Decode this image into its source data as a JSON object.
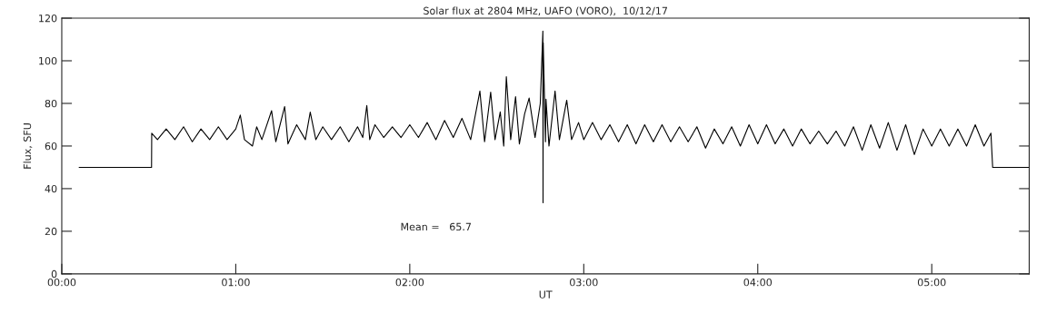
{
  "chart_data": {
    "type": "line",
    "title": "Solar flux at 2804 MHz, UAFO (VORO),  10/12/17",
    "xlabel": "UT",
    "ylabel": "Flux, SFU",
    "x": [
      0.1,
      0.516,
      0.517,
      0.55,
      0.6,
      0.65,
      0.7,
      0.75,
      0.8,
      0.85,
      0.9,
      0.95,
      1.0,
      1.026,
      1.05,
      1.096,
      1.12,
      1.15,
      1.206,
      1.23,
      1.281,
      1.3,
      1.35,
      1.4,
      1.428,
      1.46,
      1.5,
      1.55,
      1.6,
      1.65,
      1.7,
      1.73,
      1.753,
      1.77,
      1.8,
      1.85,
      1.9,
      1.95,
      2.0,
      2.05,
      2.1,
      2.15,
      2.2,
      2.25,
      2.3,
      2.35,
      2.403,
      2.43,
      2.465,
      2.49,
      2.52,
      2.54,
      2.555,
      2.58,
      2.608,
      2.63,
      2.66,
      2.686,
      2.72,
      2.75,
      2.765,
      2.766,
      2.767,
      2.78,
      2.783,
      2.8,
      2.835,
      2.86,
      2.902,
      2.93,
      2.97,
      3.0,
      3.05,
      3.1,
      3.15,
      3.2,
      3.25,
      3.3,
      3.35,
      3.4,
      3.45,
      3.5,
      3.55,
      3.6,
      3.65,
      3.7,
      3.75,
      3.8,
      3.85,
      3.9,
      3.95,
      4.0,
      4.05,
      4.1,
      4.15,
      4.2,
      4.25,
      4.3,
      4.35,
      4.4,
      4.45,
      4.5,
      4.55,
      4.6,
      4.65,
      4.7,
      4.75,
      4.8,
      4.85,
      4.9,
      4.95,
      5.0,
      5.05,
      5.1,
      5.15,
      5.2,
      5.25,
      5.3,
      5.34,
      5.35,
      5.56
    ],
    "series": [
      {
        "color": "#000000",
        "values": [
          50,
          50,
          66,
          63,
          68,
          63,
          69,
          62,
          68,
          63,
          69,
          63,
          68,
          74.5,
          63,
          60,
          69,
          63,
          76.6,
          62,
          78.5,
          61,
          70,
          63,
          75.9,
          63,
          69,
          63,
          69,
          62,
          69,
          64,
          79,
          63,
          70,
          64,
          69,
          64,
          70,
          64,
          71,
          63,
          72,
          64,
          73,
          63,
          85.8,
          62,
          85.3,
          63,
          76,
          60,
          92.5,
          63,
          83.2,
          61,
          75,
          82.5,
          64,
          80,
          113.9,
          33.4,
          108.5,
          62,
          82,
          60,
          85.8,
          63,
          81.5,
          63,
          71,
          63,
          71,
          63,
          70,
          62,
          70,
          61,
          70,
          62,
          70,
          62,
          69,
          62,
          69,
          59,
          68,
          61,
          69,
          60,
          70,
          61,
          70,
          61,
          68,
          60,
          68,
          61,
          67,
          61,
          67,
          60,
          69,
          58,
          70,
          59,
          71,
          58,
          70,
          56,
          68,
          60,
          68,
          60,
          68,
          60,
          70,
          60,
          66,
          50,
          50
        ]
      }
    ],
    "xlim": [
      0,
      5.56
    ],
    "xticks": [
      {
        "value": 0,
        "label": "00:00"
      },
      {
        "value": 1,
        "label": "01:00"
      },
      {
        "value": 2,
        "label": "02:00"
      },
      {
        "value": 3,
        "label": "03:00"
      },
      {
        "value": 4,
        "label": "04:00"
      },
      {
        "value": 5,
        "label": "05:00"
      }
    ],
    "ylim": [
      0,
      120
    ],
    "yticks": [
      0,
      20,
      40,
      60,
      80,
      100,
      120
    ],
    "annotations": [
      "Mean =   65.7"
    ]
  }
}
